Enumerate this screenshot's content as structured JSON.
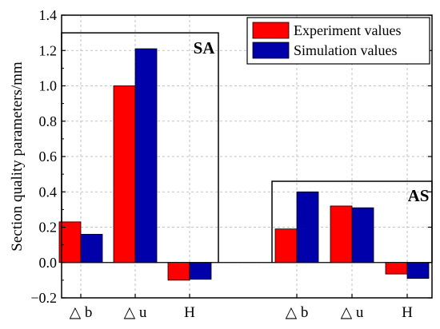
{
  "chart_data": {
    "type": "bar",
    "ylabel": "Section quality parameters/mm",
    "ylim": [
      -0.2,
      1.4
    ],
    "yticks": [
      -0.2,
      0.0,
      0.2,
      0.4,
      0.6,
      0.8,
      1.0,
      1.2,
      1.4
    ],
    "ytick_labels": [
      "−0.2",
      "0.0",
      "0.2",
      "0.4",
      "0.6",
      "0.8",
      "1.0",
      "1.2",
      "1.4"
    ],
    "grid": "dashed",
    "legend_position": "top-right",
    "groups": [
      {
        "name": "SA",
        "categories": [
          "△ b",
          "△ u",
          "H"
        ],
        "series": [
          {
            "name": "Experiment values",
            "values": [
              0.23,
              1.0,
              -0.1
            ]
          },
          {
            "name": "Simulation values",
            "values": [
              0.16,
              1.21,
              -0.095
            ]
          }
        ]
      },
      {
        "name": "AS",
        "categories": [
          "△ b",
          "△ u",
          "H"
        ],
        "series": [
          {
            "name": "Experiment values",
            "values": [
              0.19,
              0.32,
              -0.065
            ]
          },
          {
            "name": "Simulation values",
            "values": [
              0.4,
              0.31,
              -0.09
            ]
          }
        ]
      }
    ],
    "legend": [
      "Experiment values",
      "Simulation values"
    ],
    "colors": {
      "Experiment values": "#ff0000",
      "Simulation values": "#0000aa"
    }
  }
}
